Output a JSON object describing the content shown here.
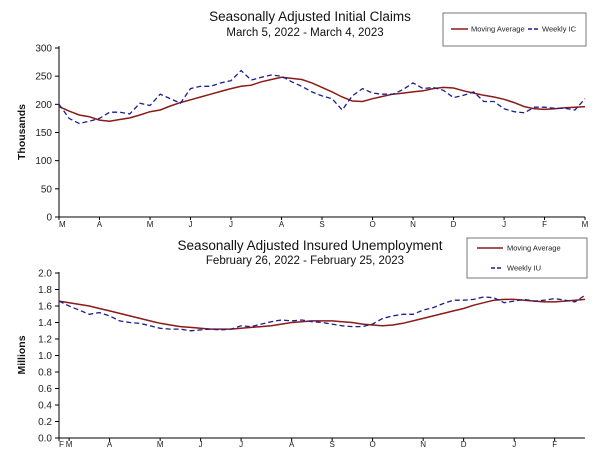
{
  "chart_data": [
    {
      "type": "line",
      "title": "Seasonally Adjusted Initial Claims",
      "subtitle": "March 5, 2022 - March 4, 2023",
      "ylabel": "Thousands",
      "xlabel": "",
      "ylim": [
        0,
        300
      ],
      "yticks": [
        0,
        50,
        100,
        150,
        200,
        250,
        300
      ],
      "month_labels": [
        "M",
        "A",
        "M",
        "J",
        "J",
        "A",
        "S",
        "O",
        "N",
        "D",
        "J",
        "F",
        "M"
      ],
      "month_positions": [
        0,
        4,
        9,
        13,
        17,
        22,
        26,
        31,
        35,
        39,
        44,
        48,
        52
      ],
      "legend": [
        "Moving Average",
        "Weekly IC"
      ],
      "series": [
        {
          "name": "Moving Average",
          "color": "#8b1a1a",
          "style": "solid",
          "values": [
            196,
            188,
            181,
            178,
            172,
            170,
            173,
            176,
            181,
            187,
            190,
            197,
            203,
            208,
            213,
            218,
            223,
            228,
            232,
            234,
            240,
            244,
            248,
            246,
            244,
            238,
            230,
            222,
            213,
            206,
            205,
            210,
            214,
            218,
            220,
            222,
            224,
            228,
            230,
            229,
            224,
            220,
            216,
            213,
            209,
            203,
            196,
            192,
            191,
            192,
            194,
            195,
            196
          ]
        },
        {
          "name": "Weekly IC",
          "color": "#1a1f8c",
          "style": "dashed",
          "values": [
            200,
            175,
            166,
            170,
            175,
            186,
            186,
            183,
            202,
            198,
            218,
            210,
            202,
            228,
            232,
            232,
            238,
            242,
            260,
            243,
            248,
            252,
            250,
            240,
            232,
            222,
            215,
            210,
            190,
            215,
            228,
            220,
            218,
            218,
            226,
            238,
            228,
            230,
            225,
            212,
            216,
            222,
            205,
            205,
            192,
            187,
            185,
            195,
            195,
            193,
            193,
            190,
            210
          ]
        }
      ]
    },
    {
      "type": "line",
      "title": "Seasonally Adjusted Insured Unemployment",
      "subtitle": "February 26, 2022 - February 25, 2023",
      "ylabel": "Millions",
      "xlabel": "",
      "ylim": [
        0.0,
        2.0
      ],
      "yticks": [
        "0.0",
        "0.2",
        "0.4",
        "0.6",
        "0.8",
        "1.0",
        "1.2",
        "1.4",
        "1.6",
        "1.8",
        "2.0"
      ],
      "month_labels": [
        "F",
        "M",
        "A",
        "M",
        "J",
        "J",
        "A",
        "S",
        "O",
        "N",
        "D",
        "J",
        "F"
      ],
      "month_positions": [
        0,
        1,
        5,
        10,
        14,
        18,
        23,
        27,
        31,
        36,
        40,
        45,
        49
      ],
      "legend": [
        "Moving Average",
        "Weekly IU"
      ],
      "series": [
        {
          "name": "Moving Average",
          "color": "#8b1a1a",
          "style": "solid",
          "values": [
            1.66,
            1.64,
            1.62,
            1.6,
            1.57,
            1.54,
            1.51,
            1.48,
            1.45,
            1.42,
            1.39,
            1.37,
            1.35,
            1.34,
            1.33,
            1.32,
            1.32,
            1.32,
            1.33,
            1.34,
            1.35,
            1.36,
            1.38,
            1.4,
            1.41,
            1.42,
            1.42,
            1.42,
            1.41,
            1.4,
            1.38,
            1.37,
            1.36,
            1.37,
            1.39,
            1.42,
            1.45,
            1.48,
            1.51,
            1.54,
            1.57,
            1.61,
            1.64,
            1.67,
            1.68,
            1.68,
            1.67,
            1.66,
            1.65,
            1.65,
            1.66,
            1.67,
            1.68
          ]
        },
        {
          "name": "Weekly IU",
          "color": "#1a1f8c",
          "style": "dashed",
          "values": [
            1.66,
            1.6,
            1.55,
            1.5,
            1.52,
            1.48,
            1.42,
            1.4,
            1.39,
            1.36,
            1.33,
            1.32,
            1.32,
            1.3,
            1.31,
            1.32,
            1.31,
            1.32,
            1.36,
            1.35,
            1.38,
            1.41,
            1.43,
            1.42,
            1.43,
            1.41,
            1.4,
            1.38,
            1.36,
            1.35,
            1.35,
            1.38,
            1.45,
            1.48,
            1.5,
            1.5,
            1.55,
            1.58,
            1.63,
            1.67,
            1.67,
            1.68,
            1.71,
            1.7,
            1.64,
            1.66,
            1.68,
            1.66,
            1.67,
            1.69,
            1.67,
            1.65,
            1.73
          ]
        }
      ]
    }
  ]
}
